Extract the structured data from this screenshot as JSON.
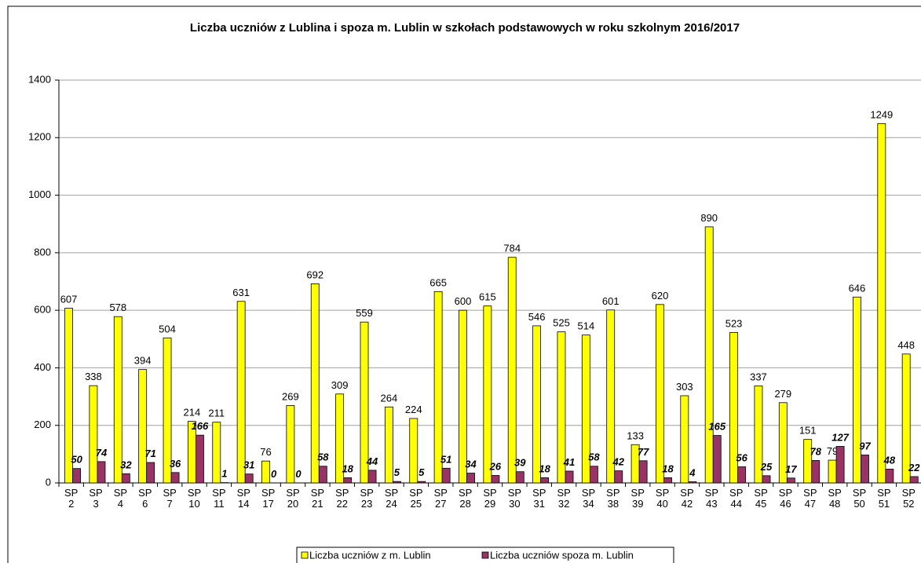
{
  "chart_data": {
    "type": "bar",
    "title": "Liczba uczniów z Lublina i spoza m. Lublin w szkołach podstawowych w roku szkolnym 2016/2017",
    "categories": [
      "SP 2",
      "SP 3",
      "SP 4",
      "SP 6",
      "SP 7",
      "SP 10",
      "SP 11",
      "SP 14",
      "SP 17",
      "SP 20",
      "SP 21",
      "SP 22",
      "SP 23",
      "SP 24",
      "SP 25",
      "SP 27",
      "SP 28",
      "SP 29",
      "SP 30",
      "SP 31",
      "SP 32",
      "SP 34",
      "SP 38",
      "SP 39",
      "SP 40",
      "SP 42",
      "SP 43",
      "SP 44",
      "SP 45",
      "SP 46",
      "SP 47",
      "SP 48",
      "SP 50",
      "SP 51",
      "SP 52"
    ],
    "series": [
      {
        "name": "Liczba uczniów z m. Lublin",
        "color": "#ffff00",
        "values": [
          607,
          338,
          578,
          394,
          504,
          214,
          211,
          631,
          76,
          269,
          692,
          309,
          559,
          264,
          224,
          665,
          600,
          615,
          784,
          546,
          525,
          514,
          601,
          133,
          620,
          303,
          890,
          523,
          337,
          279,
          151,
          79,
          646,
          1249,
          448
        ]
      },
      {
        "name": "Liczba uczniów spoza m. Lublin",
        "color": "#993366",
        "values": [
          50,
          74,
          32,
          71,
          36,
          166,
          1,
          31,
          0,
          0,
          58,
          18,
          44,
          5,
          5,
          51,
          34,
          26,
          39,
          18,
          41,
          58,
          42,
          77,
          18,
          4,
          165,
          56,
          25,
          17,
          78,
          127,
          97,
          48,
          22
        ]
      }
    ],
    "ylim": [
      0,
      1400
    ],
    "yticks": [
      0,
      200,
      400,
      600,
      800,
      1000,
      1200,
      1400
    ],
    "grid": true,
    "legend": "bottom"
  }
}
